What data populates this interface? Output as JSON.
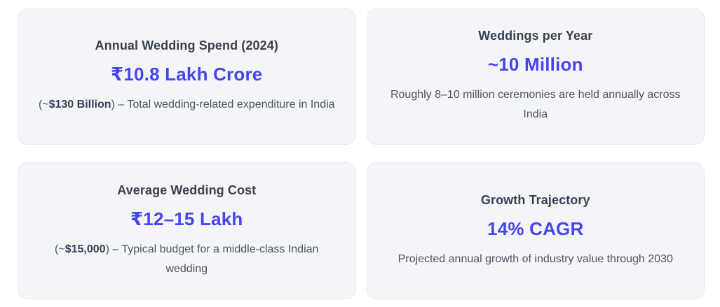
{
  "theme": {
    "page_background": "#ffffff",
    "card_background": "#f4f5f8",
    "card_border": "#e8e9ec",
    "title_color": "#374151",
    "value_color": "#4646eb",
    "description_color": "#4b5563",
    "description_bold_color": "#374151"
  },
  "cards": [
    {
      "title": "Annual Wedding Spend (2024)",
      "value": "₹10.8 Lakh Crore",
      "desc_prefix": "(~",
      "desc_bold": "$130 Billion",
      "desc_suffix": ") – Total wedding-related expenditure in India"
    },
    {
      "title": "Weddings per Year",
      "value": "~10 Million",
      "desc_prefix": "",
      "desc_bold": "",
      "desc_suffix": "Roughly 8–10 million ceremonies are held annually across India"
    },
    {
      "title": "Average Wedding Cost",
      "value": "₹12–15 Lakh",
      "desc_prefix": "(~",
      "desc_bold": "$15,000",
      "desc_suffix": ") – Typical budget for a middle-class Indian wedding"
    },
    {
      "title": "Growth Trajectory",
      "value": "14% CAGR",
      "desc_prefix": "",
      "desc_bold": "",
      "desc_suffix": "Projected annual growth of industry value through 2030"
    }
  ]
}
